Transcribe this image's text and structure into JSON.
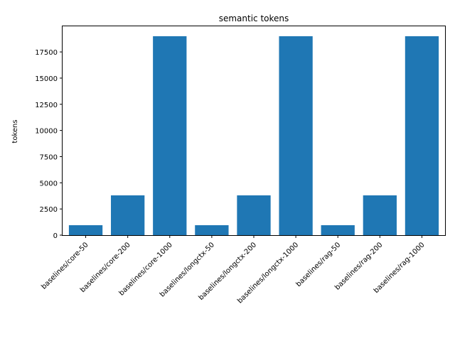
{
  "chart_data": {
    "type": "bar",
    "title": "semantic tokens",
    "xlabel": "",
    "ylabel": "tokens",
    "categories": [
      "baselines/core-50",
      "baselines/core-200",
      "baselines/core-1000",
      "baselines/longctx-50",
      "baselines/longctx-200",
      "baselines/longctx-1000",
      "baselines/rag-50",
      "baselines/rag-200",
      "baselines/rag-1000"
    ],
    "values": [
      950,
      3800,
      19000,
      950,
      3800,
      19000,
      950,
      3800,
      19000
    ],
    "ylim": [
      0,
      19950
    ],
    "yticks": [
      0,
      2500,
      5000,
      7500,
      10000,
      12500,
      15000,
      17500
    ],
    "ytick_labels": [
      "0",
      "2500",
      "5000",
      "7500",
      "10000",
      "12500",
      "15000",
      "17500"
    ],
    "bar_color": "#1f77b4",
    "grid": false,
    "legend": "none"
  }
}
